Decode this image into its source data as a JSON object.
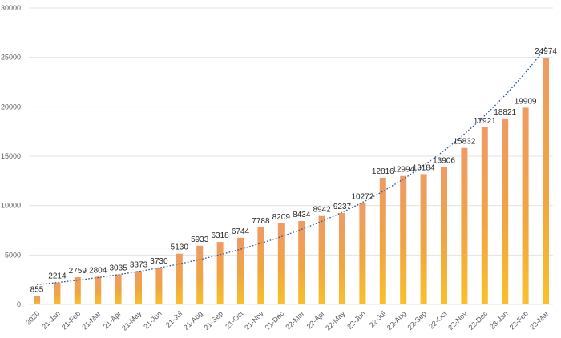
{
  "chart_data": {
    "type": "bar",
    "title": "",
    "xlabel": "",
    "ylabel": "",
    "categories": [
      "2020",
      "21-Jan",
      "21-Feb",
      "21-Mar",
      "21-Apr",
      "21-May",
      "21-Jun",
      "21-Jul",
      "21-Aug",
      "21-Sep",
      "21-Oct",
      "21-Nov",
      "21-Dec",
      "22-Mar",
      "22-Apr",
      "22-May",
      "22-Jun",
      "22-Jul",
      "22-Aug",
      "22-Sep",
      "22-Oct",
      "22-Nov",
      "22-Dec",
      "23-Jan",
      "23-Feb",
      "23-Mar"
    ],
    "values": [
      855,
      2214,
      2759,
      2804,
      3035,
      3373,
      3730,
      5130,
      5933,
      6318,
      6744,
      7788,
      8209,
      8434,
      8942,
      9237,
      10272,
      12816,
      12994,
      13184,
      13906,
      15832,
      17921,
      18821,
      19909,
      24974
    ],
    "data_labels": [
      "855",
      "2214",
      "2759",
      "2804",
      "3035",
      "3373",
      "3730",
      "5130",
      "5933",
      "6318",
      "6744",
      "7788",
      "8209",
      "8434",
      "8942",
      "9237",
      "10272",
      "12816",
      "12994",
      "13184",
      "13906",
      "15832",
      "17921",
      "18821",
      "19909",
      "24974"
    ],
    "ylim": [
      0,
      30000
    ],
    "yticks": [
      0,
      5000,
      10000,
      15000,
      20000,
      25000,
      30000
    ],
    "ytick_labels": [
      "0",
      "5000",
      "10000",
      "15000",
      "20000",
      "25000",
      "30000"
    ],
    "grid": true,
    "legend": "none",
    "trendline": {
      "type": "exponential",
      "style": "dotted",
      "color": "#2f5597",
      "start_value": 2000,
      "end_value": 26000
    },
    "colors": {
      "bar_top": "#ee9b64",
      "bar_mid": "#f0a542",
      "bar_bottom": "#f9c02a",
      "gridline": "#e3e3e3",
      "tick_text": "#595959",
      "label_text": "#262626"
    }
  }
}
